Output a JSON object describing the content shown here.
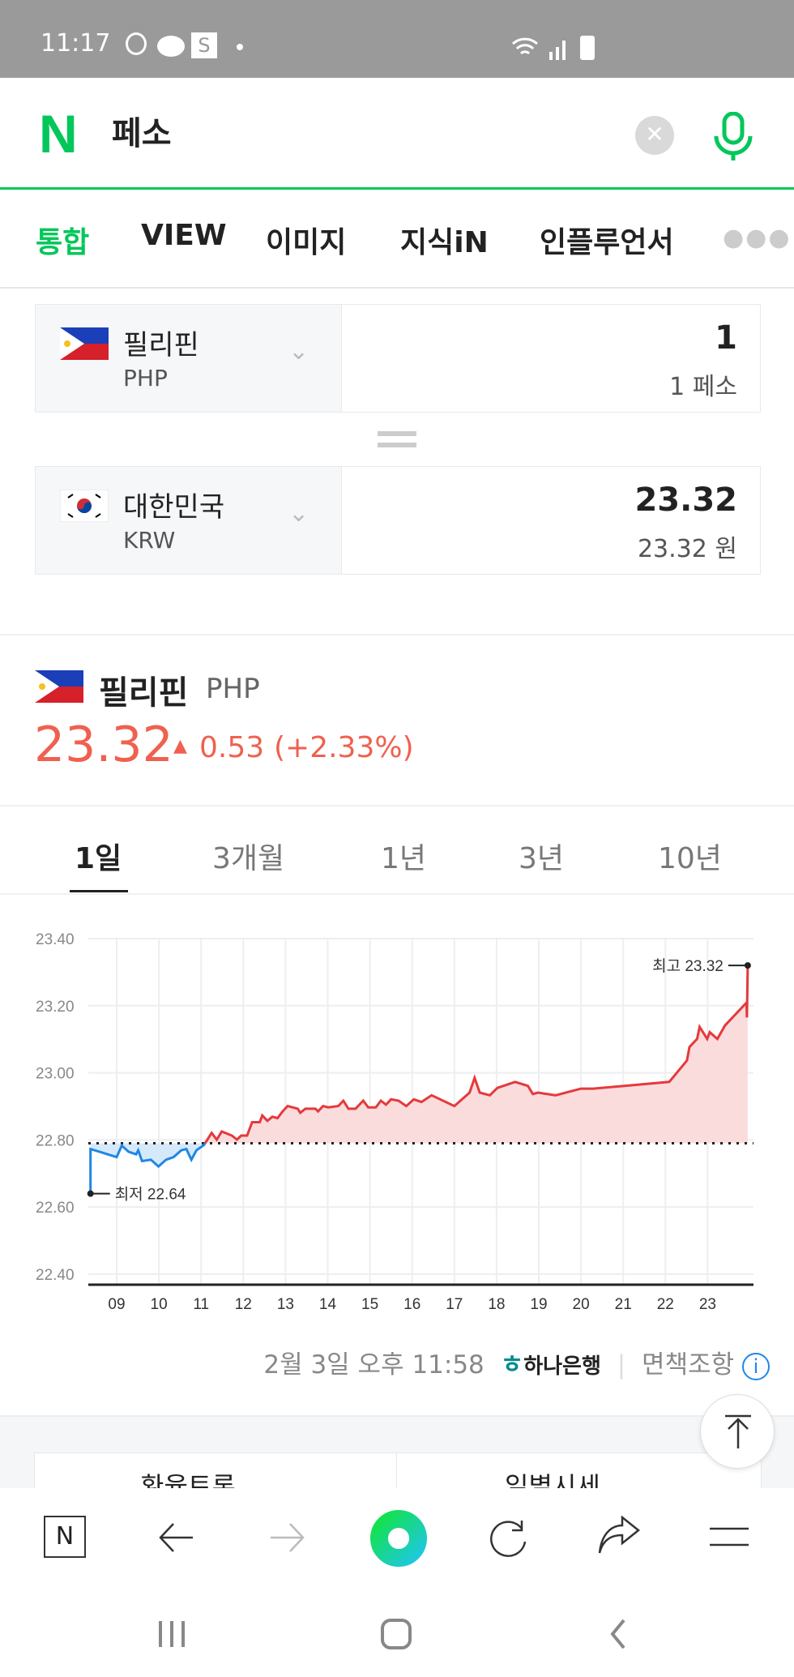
{
  "status_bar": {
    "time": "11:17",
    "icons": [
      "b-app-icon",
      "kakaotalk-icon",
      "s-app-icon",
      "dot-icon",
      "wifi-icon",
      "signal-icon",
      "battery-icon"
    ]
  },
  "header": {
    "logo": "N",
    "query": "페소",
    "clear_icon": "close-icon",
    "mic_icon": "mic-icon"
  },
  "tabs": [
    {
      "label": "통합",
      "active": true
    },
    {
      "label": "VIEW"
    },
    {
      "label": "이미지"
    },
    {
      "label": "지식iN"
    },
    {
      "label": "인플루언서"
    }
  ],
  "tabs_more_icon": "more-dots-icon",
  "converter": {
    "from": {
      "country": "필리핀",
      "code": "PHP",
      "amount": "1",
      "amount_text": "1 페소"
    },
    "to": {
      "country": "대한민국",
      "code": "KRW",
      "amount": "23.32",
      "amount_text": "23.32 원"
    }
  },
  "rate": {
    "country": "필리핀",
    "code": "PHP",
    "value": "23.32",
    "change": "0.53",
    "change_pct": "(+2.33%)",
    "color_up": "#f0604f"
  },
  "period_tabs": [
    {
      "label": "1일",
      "active": true
    },
    {
      "label": "3개월"
    },
    {
      "label": "1년"
    },
    {
      "label": "3년"
    },
    {
      "label": "10년"
    }
  ],
  "chart_data": {
    "type": "area",
    "x_ticks": [
      "09",
      "10",
      "11",
      "12",
      "13",
      "14",
      "15",
      "16",
      "17",
      "18",
      "19",
      "20",
      "21",
      "22",
      "23"
    ],
    "y_ticks": [
      "23.40",
      "23.20",
      "23.00",
      "22.80",
      "22.60",
      "22.40"
    ],
    "ylim": [
      22.4,
      23.4
    ],
    "baseline": 22.79,
    "grid": true,
    "colors": {
      "up": "#e5393c",
      "up_fill": "#fbdcdc",
      "down": "#1f87e5",
      "down_fill": "#d6e9fb"
    },
    "min_label": "최저 22.64",
    "max_label": "최고 23.32",
    "points": [
      [
        8.38,
        22.64
      ],
      [
        8.38,
        22.773
      ],
      [
        9.0,
        22.749
      ],
      [
        9.12,
        22.783
      ],
      [
        9.28,
        22.765
      ],
      [
        9.46,
        22.757
      ],
      [
        9.51,
        22.769
      ],
      [
        9.6,
        22.737
      ],
      [
        9.81,
        22.741
      ],
      [
        9.99,
        22.721
      ],
      [
        10.17,
        22.741
      ],
      [
        10.35,
        22.749
      ],
      [
        10.53,
        22.769
      ],
      [
        10.65,
        22.773
      ],
      [
        10.77,
        22.741
      ],
      [
        10.89,
        22.769
      ],
      [
        11.07,
        22.785
      ],
      [
        11.25,
        22.821
      ],
      [
        11.37,
        22.801
      ],
      [
        11.49,
        22.825
      ],
      [
        11.73,
        22.813
      ],
      [
        11.85,
        22.801
      ],
      [
        11.95,
        22.813
      ],
      [
        12.09,
        22.813
      ],
      [
        12.21,
        22.853
      ],
      [
        12.39,
        22.853
      ],
      [
        12.45,
        22.873
      ],
      [
        12.57,
        22.857
      ],
      [
        12.69,
        22.869
      ],
      [
        12.81,
        22.865
      ],
      [
        12.93,
        22.885
      ],
      [
        13.05,
        22.901
      ],
      [
        13.29,
        22.893
      ],
      [
        13.35,
        22.881
      ],
      [
        13.47,
        22.893
      ],
      [
        13.71,
        22.893
      ],
      [
        13.77,
        22.885
      ],
      [
        13.89,
        22.901
      ],
      [
        14.01,
        22.897
      ],
      [
        14.25,
        22.901
      ],
      [
        14.37,
        22.917
      ],
      [
        14.49,
        22.893
      ],
      [
        14.66,
        22.893
      ],
      [
        14.84,
        22.917
      ],
      [
        14.96,
        22.897
      ],
      [
        15.14,
        22.897
      ],
      [
        15.26,
        22.917
      ],
      [
        15.38,
        22.905
      ],
      [
        15.5,
        22.921
      ],
      [
        15.68,
        22.917
      ],
      [
        15.86,
        22.901
      ],
      [
        16.04,
        22.921
      ],
      [
        16.22,
        22.913
      ],
      [
        16.46,
        22.933
      ],
      [
        17.0,
        22.901
      ],
      [
        17.36,
        22.941
      ],
      [
        17.48,
        22.985
      ],
      [
        17.6,
        22.941
      ],
      [
        17.84,
        22.933
      ],
      [
        18.02,
        22.955
      ],
      [
        18.44,
        22.973
      ],
      [
        18.74,
        22.961
      ],
      [
        18.86,
        22.937
      ],
      [
        18.98,
        22.941
      ],
      [
        19.4,
        22.933
      ],
      [
        20.0,
        22.953
      ],
      [
        20.29,
        22.953
      ],
      [
        22.09,
        22.973
      ],
      [
        22.51,
        23.037
      ],
      [
        22.57,
        23.077
      ],
      [
        22.75,
        23.101
      ],
      [
        22.81,
        23.137
      ],
      [
        22.99,
        23.101
      ],
      [
        23.05,
        23.121
      ],
      [
        23.23,
        23.101
      ],
      [
        23.41,
        23.141
      ],
      [
        23.92,
        23.209
      ],
      [
        23.93,
        23.165
      ],
      [
        23.95,
        23.32
      ]
    ]
  },
  "footer": {
    "timestamp": "2월 3일 오후 11:58",
    "bank": "하나은행",
    "disclaimer": "면책조항"
  },
  "below": {
    "left_button": "환율토론",
    "right_button": "일별시세"
  },
  "bottom_bar": [
    "naver-home-icon",
    "back-arrow-icon",
    "forward-arrow-icon",
    "green-dot-icon",
    "refresh-icon",
    "share-icon",
    "menu-icon"
  ],
  "system_nav": [
    "recent-apps-icon",
    "home-icon",
    "back-icon"
  ]
}
